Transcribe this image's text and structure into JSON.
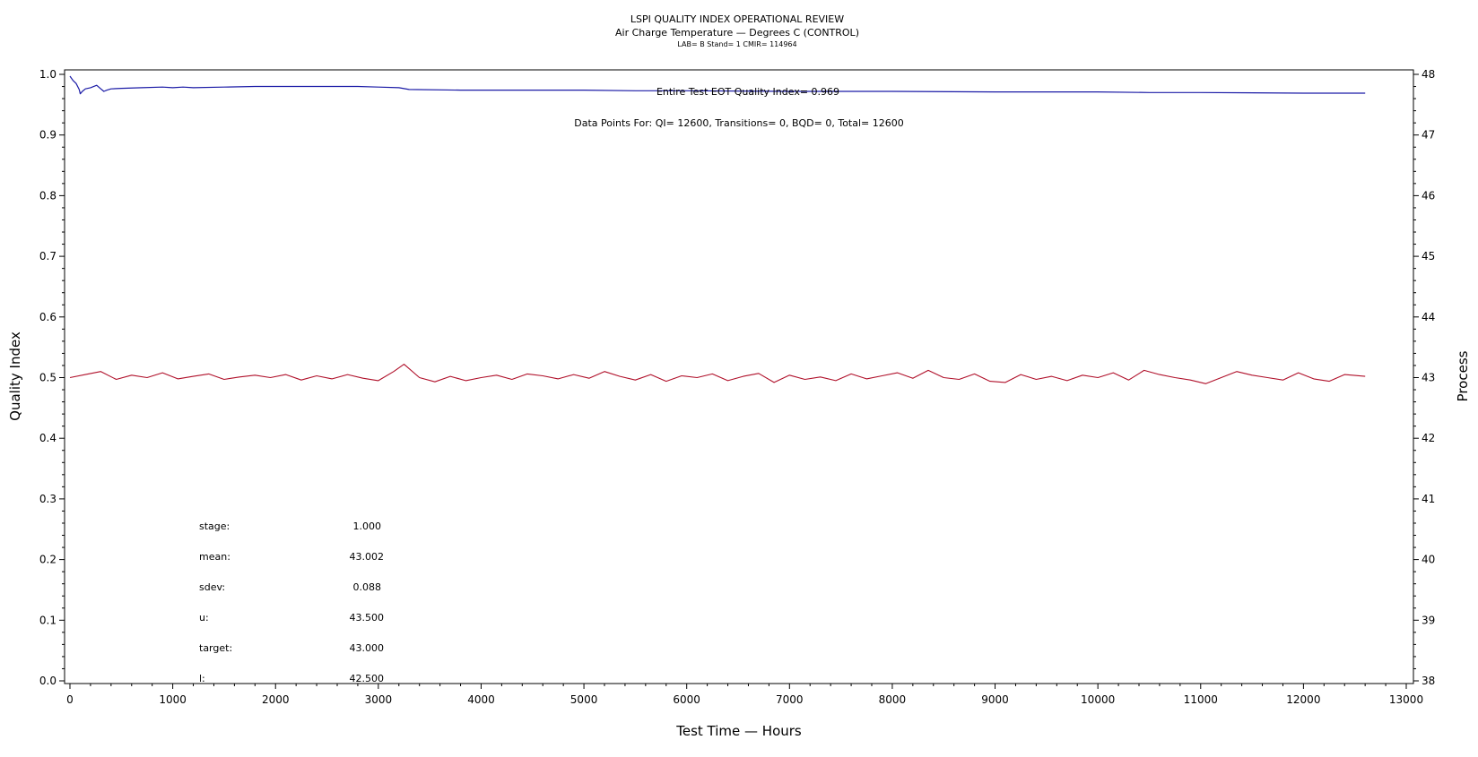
{
  "header": {
    "title": "LSPI QUALITY INDEX OPERATIONAL REVIEW",
    "subtitle": "Air Charge Temperature — Degrees C (CONTROL)",
    "subsubtitle": "LAB= B Stand= 1 CMIR= 114964"
  },
  "annotations": {
    "quality_index": "Entire Test EOT Quality Index=   0.969",
    "data_points": "Data Points For: QI= 12600, Transitions=      0, BQD=      0, Total= 12600"
  },
  "stats": [
    {
      "label": "stage:",
      "value": "1.000"
    },
    {
      "label": "mean:",
      "value": "43.002"
    },
    {
      "label": "sdev:",
      "value": "0.088"
    },
    {
      "label": "u:",
      "value": "43.500"
    },
    {
      "label": "target:",
      "value": "43.000"
    },
    {
      "label": "l:",
      "value": "42.500"
    }
  ],
  "chart_data": {
    "type": "line",
    "title": "LSPI QUALITY INDEX OPERATIONAL REVIEW",
    "xlabel": "Test Time — Hours",
    "ylabel": "Quality Index",
    "y2label": "Process",
    "xlim": [
      0,
      13000
    ],
    "ylim": [
      0.0,
      1.0
    ],
    "y2lim": [
      38,
      48
    ],
    "x_ticks": [
      0,
      1000,
      2000,
      3000,
      4000,
      5000,
      6000,
      7000,
      8000,
      9000,
      10000,
      11000,
      12000,
      13000
    ],
    "y_ticks": [
      "0.0",
      "0.1",
      "0.2",
      "0.3",
      "0.4",
      "0.5",
      "0.6",
      "0.7",
      "0.8",
      "0.9",
      "1.0"
    ],
    "y2_ticks": [
      38,
      39,
      40,
      41,
      42,
      43,
      44,
      45,
      46,
      47,
      48
    ],
    "grid": false,
    "colors": {
      "quality_index": "#1a1aa6",
      "process": "#b0102a"
    },
    "series": [
      {
        "axis": "left",
        "x": [
          0,
          30,
          60,
          90,
          100,
          120,
          150,
          200,
          260,
          300,
          330,
          360,
          400,
          500,
          700,
          900,
          1000,
          1100,
          1200,
          1500,
          1800,
          2000,
          2200,
          2500,
          2800,
          3000,
          3200,
          3300,
          3800,
          4500,
          5000,
          5500,
          6000,
          7000,
          8000,
          9000,
          10000,
          10500,
          11000,
          12000,
          12600
        ],
        "y": [
          0.997,
          0.99,
          0.985,
          0.975,
          0.968,
          0.972,
          0.976,
          0.978,
          0.982,
          0.976,
          0.972,
          0.974,
          0.976,
          0.977,
          0.978,
          0.979,
          0.978,
          0.979,
          0.978,
          0.979,
          0.98,
          0.98,
          0.98,
          0.98,
          0.98,
          0.979,
          0.978,
          0.975,
          0.974,
          0.974,
          0.974,
          0.973,
          0.973,
          0.972,
          0.972,
          0.971,
          0.971,
          0.97,
          0.97,
          0.969,
          0.969
        ]
      },
      {
        "axis": "right",
        "x": [
          0,
          150,
          300,
          450,
          600,
          750,
          900,
          1050,
          1200,
          1350,
          1500,
          1650,
          1800,
          1950,
          2100,
          2250,
          2400,
          2550,
          2700,
          2850,
          3000,
          3150,
          3250,
          3400,
          3550,
          3700,
          3850,
          4000,
          4150,
          4300,
          4450,
          4600,
          4750,
          4900,
          5050,
          5200,
          5350,
          5500,
          5650,
          5800,
          5950,
          6100,
          6250,
          6400,
          6550,
          6700,
          6850,
          7000,
          7150,
          7300,
          7450,
          7600,
          7750,
          7900,
          8050,
          8200,
          8350,
          8500,
          8650,
          8800,
          8950,
          9100,
          9250,
          9400,
          9550,
          9700,
          9850,
          10000,
          10150,
          10300,
          10450,
          10600,
          10750,
          10900,
          11050,
          11200,
          11350,
          11500,
          11650,
          11800,
          11950,
          12100,
          12250,
          12400,
          12600
        ],
        "y": [
          43.0,
          43.05,
          43.1,
          42.97,
          43.04,
          43.0,
          43.08,
          42.98,
          43.02,
          43.06,
          42.97,
          43.01,
          43.04,
          43.0,
          43.05,
          42.96,
          43.03,
          42.98,
          43.05,
          42.99,
          42.95,
          43.1,
          43.22,
          43.0,
          42.93,
          43.02,
          42.95,
          43.0,
          43.04,
          42.97,
          43.06,
          43.03,
          42.98,
          43.05,
          42.99,
          43.1,
          43.02,
          42.96,
          43.05,
          42.94,
          43.03,
          43.0,
          43.06,
          42.95,
          43.02,
          43.07,
          42.92,
          43.04,
          42.97,
          43.01,
          42.95,
          43.06,
          42.98,
          43.03,
          43.08,
          42.99,
          43.12,
          43.0,
          42.97,
          43.06,
          42.94,
          42.92,
          43.05,
          42.97,
          43.02,
          42.95,
          43.04,
          43.0,
          43.08,
          42.96,
          43.12,
          43.05,
          43.0,
          42.96,
          42.9,
          43.0,
          43.1,
          43.04,
          43.0,
          42.96,
          43.08,
          42.98,
          42.94,
          43.05,
          43.02
        ]
      }
    ]
  }
}
